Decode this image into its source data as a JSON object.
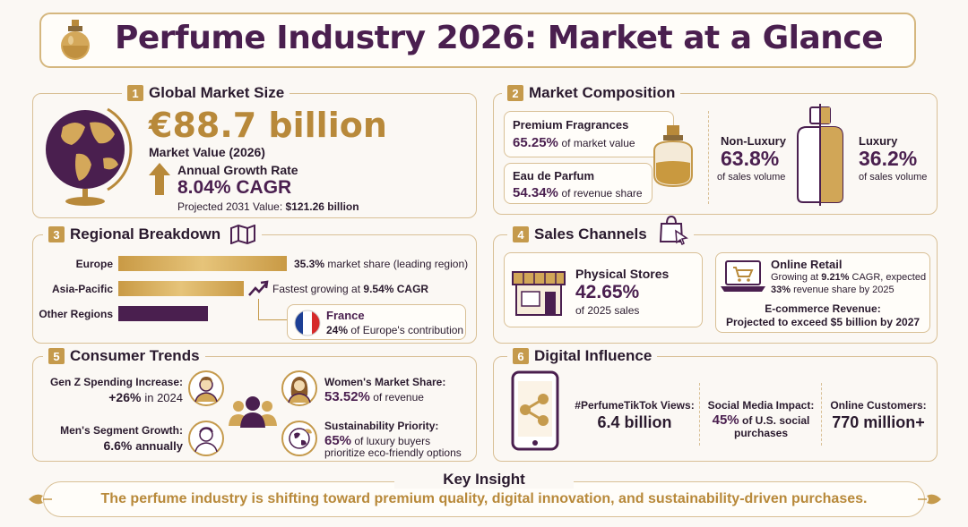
{
  "title": "Perfume Industry 2026: Market at a Glance",
  "sections": {
    "market_size": {
      "num": "1",
      "title": "Global Market Size",
      "value": "€88.7 billion",
      "value_label": "Market Value (2026)",
      "growth_label": "Annual Growth Rate",
      "growth_value": "8.04% CAGR",
      "projection_label": "Projected 2031 Value:",
      "projection_value": "$121.26 billion"
    },
    "composition": {
      "num": "2",
      "title": "Market Composition",
      "premium_label": "Premium Fragrances",
      "premium_value": "65.25%",
      "premium_suffix": "of market value",
      "edp_label": "Eau de Parfum",
      "edp_value": "54.34%",
      "edp_suffix": "of revenue share",
      "nonlux_label": "Non-Luxury",
      "nonlux_value": "63.8%",
      "nonlux_suffix": "of sales volume",
      "lux_label": "Luxury",
      "lux_value": "36.2%",
      "lux_suffix": "of sales volume"
    },
    "regional": {
      "num": "3",
      "title": "Regional Breakdown",
      "rows": [
        {
          "label": "Europe",
          "note_value": "35.3%",
          "note_suffix": "market share (leading region)"
        },
        {
          "label": "Asia-Pacific",
          "note_prefix": "Fastest growing at",
          "note_value": "9.54% CAGR"
        },
        {
          "label": "Other Regions"
        }
      ],
      "shares": {
        "europe": 35.3
      },
      "france_label": "France",
      "france_value": "24%",
      "france_suffix": "of Europe's contribution"
    },
    "channels": {
      "num": "4",
      "title": "Sales Channels",
      "physical_label": "Physical Stores",
      "physical_value": "42.65%",
      "physical_suffix": "of 2025 sales",
      "online_label": "Online Retail",
      "online_line1_prefix": "Growing at",
      "online_line1_value": "9.21%",
      "online_line1_suffix": "CAGR, expected",
      "online_line2_value": "33%",
      "online_line2_suffix": "revenue share by 2025",
      "ecom_label": "E-commerce Revenue:",
      "ecom_value": "Projected to exceed $5 billion by 2027"
    },
    "trends": {
      "num": "5",
      "title": "Consumer Trends",
      "genz_label": "Gen Z Spending Increase:",
      "genz_value": "+26%",
      "genz_suffix": "in 2024",
      "men_label": "Men's Segment Growth:",
      "men_value": "6.6%",
      "men_suffix": "annually",
      "women_label": "Women's Market Share:",
      "women_value": "53.52%",
      "women_suffix": "of revenue",
      "sust_label": "Sustainability Priority:",
      "sust_value": "65%",
      "sust_line1": "of luxury buyers",
      "sust_line2": "prioritize eco-friendly options"
    },
    "digital": {
      "num": "6",
      "title": "Digital Influence",
      "tiktok_label": "#PerfumeTikTok Views:",
      "tiktok_value": "6.4 billion",
      "social_label": "Social Media Impact:",
      "social_value": "45%",
      "social_suffix": "of U.S. social",
      "social_line2": "purchases",
      "customers_label": "Online Customers:",
      "customers_value": "770 million+"
    }
  },
  "insight": {
    "title": "Key Insight",
    "text": "The perfume industry is shifting toward premium quality, digital innovation, and sustainability-driven purchases."
  },
  "colors": {
    "plum": "#4a1f4f",
    "gold": "#c59a4c",
    "background": "#fbf8f4"
  },
  "icons": [
    "perfume-bottle-icon",
    "globe-icon",
    "up-arrow-icon",
    "map-icon",
    "trend-up-icon",
    "france-flag-icon",
    "shopping-bag-icon",
    "storefront-icon",
    "laptop-cart-icon",
    "perfume-flask-icon",
    "split-bottle-icon",
    "man-avatar-icon",
    "woman-avatar-icon",
    "group-icon",
    "eco-globe-icon",
    "phone-share-icon"
  ]
}
